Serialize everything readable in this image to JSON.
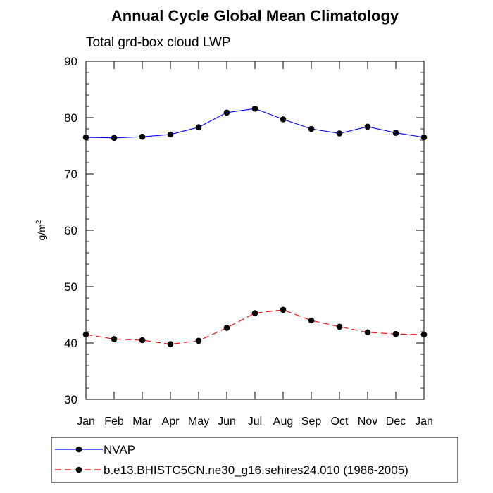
{
  "chart_data": {
    "type": "line",
    "title": "Annual Cycle Global Mean Climatology",
    "subtitle": "Total grd-box cloud LWP",
    "ylabel": "g/m",
    "ylabel_superscript": "2",
    "xlabel": "",
    "categories": [
      "Jan",
      "Feb",
      "Mar",
      "Apr",
      "May",
      "Jun",
      "Jul",
      "Aug",
      "Sep",
      "Oct",
      "Nov",
      "Dec",
      "Jan"
    ],
    "ylim": [
      30,
      90
    ],
    "yticks": [
      30,
      40,
      50,
      60,
      70,
      80,
      90
    ],
    "grid": false,
    "legend_position": "bottom",
    "series": [
      {
        "name": "NVAP",
        "color": "#0000ff",
        "line_style": "solid",
        "marker": "filled-circle",
        "values": [
          76.5,
          76.4,
          76.6,
          77.0,
          78.3,
          80.9,
          81.6,
          79.7,
          78.0,
          77.2,
          78.4,
          77.3,
          76.5
        ]
      },
      {
        "name": "b.e13.BHISTC5CN.ne30_g16.sehires24.010 (1986-2005)",
        "color": "#ff0000",
        "line_style": "dashed",
        "marker": "filled-circle",
        "values": [
          41.5,
          40.7,
          40.5,
          39.8,
          40.4,
          42.7,
          45.3,
          45.9,
          44.0,
          42.9,
          41.9,
          41.6,
          41.5
        ]
      }
    ]
  }
}
